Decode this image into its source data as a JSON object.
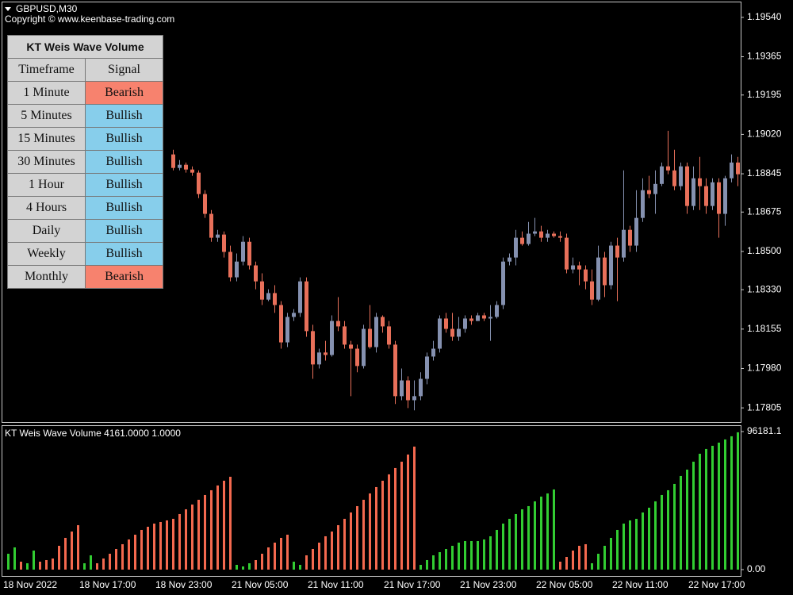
{
  "header": {
    "symbol": "GBPUSD,M30",
    "copyright": "Copyright © www.keenbase-trading.com"
  },
  "table": {
    "title": "KT Weis Wave Volume",
    "columns": [
      "Timeframe",
      "Signal"
    ],
    "rows": [
      [
        "1 Minute",
        "Bearish"
      ],
      [
        "5 Minutes",
        "Bullish"
      ],
      [
        "15 Minutes",
        "Bullish"
      ],
      [
        "30 Minutes",
        "Bullish"
      ],
      [
        "1 Hour",
        "Bullish"
      ],
      [
        "4 Hours",
        "Bullish"
      ],
      [
        "Daily",
        "Bullish"
      ],
      [
        "Weekly",
        "Bullish"
      ],
      [
        "Monthly",
        "Bearish"
      ]
    ],
    "signal_colors": {
      "Bearish": "#f7826e",
      "Bullish": "#87ceeb"
    }
  },
  "chart_data": [
    {
      "type": "candlestick",
      "up_color": "#8591b0",
      "down_color": "#e8705a",
      "categories": [
        "18 Nov 2022",
        null,
        null,
        null,
        null,
        null,
        null,
        null,
        null,
        null,
        null,
        null,
        "18 Nov 17:00",
        null,
        null,
        null,
        null,
        null,
        null,
        null,
        null,
        null,
        null,
        null,
        "18 Nov 23:00",
        null,
        null,
        null,
        null,
        null,
        null,
        null,
        null,
        null,
        null,
        null,
        "21 Nov 05:00",
        null,
        null,
        null,
        null,
        null,
        null,
        null,
        null,
        null,
        null,
        null,
        "21 Nov 11:00",
        null,
        null,
        null,
        null,
        null,
        null,
        null,
        null,
        null,
        null,
        null,
        "21 Nov 17:00",
        null,
        null,
        null,
        null,
        null,
        null,
        null,
        null,
        null,
        null,
        null,
        "21 Nov 23:00",
        null,
        null,
        null,
        null,
        null,
        null,
        null,
        null,
        null,
        null,
        null,
        "22 Nov 05:00",
        null,
        null,
        null,
        null,
        null,
        null,
        null,
        null,
        null,
        null,
        null,
        "22 Nov 11:00",
        null,
        null,
        null,
        null,
        null,
        null,
        null,
        null,
        null,
        null,
        null,
        "22 Nov 17:00",
        null,
        null,
        null,
        null,
        null,
        null,
        null
      ],
      "open": [
        null,
        null,
        null,
        null,
        null,
        null,
        null,
        null,
        null,
        null,
        null,
        null,
        null,
        null,
        null,
        null,
        null,
        null,
        null,
        null,
        null,
        null,
        null,
        null,
        null,
        null,
        1.18931,
        1.18871,
        1.18885,
        1.18864,
        1.1885,
        1.18755,
        1.18667,
        1.18561,
        1.18575,
        1.18498,
        1.18385,
        1.18455,
        1.18543,
        1.18438,
        1.18367,
        1.18286,
        1.18315,
        1.18262,
        1.18096,
        1.18209,
        1.18227,
        1.18367,
        1.18146,
        1.17998,
        1.18051,
        1.1804,
        1.18191,
        1.18167,
        1.18086,
        1.18068,
        1.17991,
        1.18156,
        1.18075,
        1.18209,
        1.18167,
        1.18086,
        1.17857,
        1.17927,
        1.17839,
        1.17857,
        1.17934,
        1.18033,
        1.18068,
        1.18202,
        1.18156,
        1.18121,
        1.18156,
        1.18202,
        1.18191,
        1.18216,
        1.18202,
        1.18209,
        1.18262,
        1.18455,
        1.18473,
        1.18561,
        1.18533,
        1.18579,
        1.18589,
        1.18561,
        1.18579,
        1.18568,
        1.18561,
        1.1842,
        1.18438,
        1.1842,
        1.18367,
        1.18286,
        1.18473,
        1.1835,
        1.18526,
        1.18473,
        1.18596,
        1.18526,
        1.18649,
        1.18772,
        1.18755,
        1.188,
        1.18878,
        1.1886,
        1.1879,
        1.18878,
        1.18702,
        1.18825,
        1.1879,
        1.18702,
        1.18807,
        1.18667,
        1.18825,
        1.18895
      ],
      "high": [
        null,
        null,
        null,
        null,
        null,
        null,
        null,
        null,
        null,
        null,
        null,
        null,
        null,
        null,
        null,
        null,
        null,
        null,
        null,
        null,
        null,
        null,
        null,
        null,
        null,
        null,
        1.18952,
        1.18906,
        1.18895,
        1.18878,
        1.1886,
        1.18772,
        1.18684,
        1.18596,
        1.18589,
        1.18526,
        1.18491,
        1.18568,
        1.18561,
        1.18455,
        1.18403,
        1.18332,
        1.1835,
        1.18279,
        1.18227,
        1.18244,
        1.18385,
        1.18385,
        1.18174,
        1.18068,
        1.18103,
        1.18216,
        1.18297,
        1.18191,
        1.18103,
        1.18086,
        1.18174,
        1.18262,
        1.18227,
        1.18216,
        1.18191,
        1.18103,
        1.1798,
        1.17945,
        1.17927,
        1.17963,
        1.18051,
        1.18103,
        1.18216,
        1.18227,
        1.18227,
        1.18209,
        1.18216,
        1.18216,
        1.18227,
        1.18227,
        1.18262,
        1.18279,
        1.18473,
        1.18491,
        1.18596,
        1.18589,
        1.18631,
        1.18649,
        1.18614,
        1.18596,
        1.18589,
        1.18589,
        1.18579,
        1.18473,
        1.18455,
        1.18438,
        1.1842,
        1.18526,
        1.18498,
        1.18543,
        1.18561,
        1.1886,
        1.18614,
        1.18772,
        1.18825,
        1.18836,
        1.1886,
        1.18895,
        1.19036,
        1.18952,
        1.18895,
        1.18895,
        1.18878,
        1.1892,
        1.18825,
        1.18825,
        1.18825,
        1.18836,
        1.18931,
        1.1892
      ],
      "low": [
        null,
        null,
        null,
        null,
        null,
        null,
        null,
        null,
        null,
        null,
        null,
        null,
        null,
        null,
        null,
        null,
        null,
        null,
        null,
        null,
        null,
        null,
        null,
        null,
        null,
        null,
        1.1886,
        1.1886,
        1.1885,
        1.18836,
        1.18737,
        1.18649,
        1.18543,
        1.18543,
        1.18473,
        1.18367,
        1.18367,
        1.18438,
        1.1842,
        1.18332,
        1.18262,
        1.18279,
        1.18227,
        1.18068,
        1.18075,
        1.18191,
        1.18209,
        1.18121,
        1.17934,
        1.1798,
        1.18015,
        1.18033,
        1.18146,
        1.18068,
        1.17857,
        1.17963,
        1.1798,
        1.18068,
        1.18051,
        1.18139,
        1.18068,
        1.17822,
        1.17839,
        1.17804,
        1.17794,
        1.17839,
        1.1791,
        1.18015,
        1.18051,
        1.18139,
        1.18103,
        1.18103,
        1.18139,
        1.18174,
        1.18191,
        1.18191,
        1.18103,
        1.18202,
        1.18244,
        1.18438,
        1.18438,
        1.18526,
        1.18526,
        1.18568,
        1.18543,
        1.18543,
        1.18561,
        1.18543,
        1.18403,
        1.18403,
        1.1835,
        1.18332,
        1.18262,
        1.18279,
        1.18297,
        1.18332,
        1.18279,
        1.18455,
        1.18498,
        1.18498,
        1.18631,
        1.18737,
        1.18667,
        1.1879,
        1.18843,
        1.18772,
        1.18772,
        1.18667,
        1.18684,
        1.18684,
        1.18667,
        1.18684,
        1.18561,
        1.18614,
        1.18807,
        1.1879
      ],
      "close": [
        null,
        null,
        null,
        null,
        null,
        null,
        null,
        null,
        null,
        null,
        null,
        null,
        null,
        null,
        null,
        null,
        null,
        null,
        null,
        null,
        null,
        null,
        null,
        null,
        null,
        null,
        1.18871,
        1.18885,
        1.18864,
        1.1885,
        1.18755,
        1.18667,
        1.18561,
        1.18575,
        1.18498,
        1.18385,
        1.18455,
        1.18543,
        1.18438,
        1.18367,
        1.18286,
        1.18315,
        1.18262,
        1.18096,
        1.18209,
        1.18227,
        1.18367,
        1.18146,
        1.17998,
        1.18051,
        1.1804,
        1.18191,
        1.18167,
        1.18086,
        1.18068,
        1.17991,
        1.18156,
        1.18075,
        1.18209,
        1.18167,
        1.18086,
        1.17857,
        1.17927,
        1.17839,
        1.17857,
        1.17934,
        1.18033,
        1.18068,
        1.18202,
        1.18156,
        1.18121,
        1.18156,
        1.18202,
        1.18191,
        1.18216,
        1.18202,
        1.18209,
        1.18262,
        1.18455,
        1.18473,
        1.18561,
        1.18533,
        1.18579,
        1.18589,
        1.18561,
        1.18579,
        1.18568,
        1.18561,
        1.1842,
        1.18438,
        1.1842,
        1.18367,
        1.18286,
        1.18473,
        1.1835,
        1.18526,
        1.18473,
        1.18596,
        1.18526,
        1.18649,
        1.18772,
        1.18755,
        1.188,
        1.18878,
        1.1886,
        1.1879,
        1.18878,
        1.18702,
        1.18825,
        1.1879,
        1.18702,
        1.18807,
        1.18667,
        1.18825,
        1.18895,
        1.18843
      ],
      "ylim": [
        1.17742,
        1.19603
      ],
      "yticks": [
        {
          "value": 1.1954,
          "label": "1.19540"
        },
        1.19365,
        1.19195,
        {
          "value": 1.1902,
          "label": "1.19020"
        },
        1.18845,
        1.18675,
        {
          "value": 1.185,
          "label": "1.18500"
        },
        {
          "value": 1.1833,
          "label": "1.18330"
        },
        1.18155,
        {
          "value": 1.1798,
          "label": "1.17980"
        },
        1.17805
      ],
      "grid": false
    },
    {
      "type": "bar",
      "title": "KT Weis Wave Volume 4161.0000 1.0000",
      "values": [
        11060,
        15484,
        5530,
        4424,
        13272,
        5530,
        6636,
        7742,
        16590,
        22120,
        26544,
        30968,
        4424,
        9954,
        4424,
        7742,
        11060,
        14378,
        17696,
        21014,
        24332,
        27650,
        29862,
        32074,
        33180,
        34286,
        35392,
        38710,
        42028,
        45346,
        48664,
        51982,
        55300,
        58618,
        61936,
        64701,
        3318,
        2212,
        4424,
        6636,
        11060,
        15484,
        18802,
        22120,
        24332,
        5530,
        3318,
        9954,
        14378,
        18802,
        23226,
        26544,
        30968,
        35392,
        39816,
        44240,
        48664,
        53088,
        57512,
        61936,
        66360,
        70784,
        75208,
        80185,
        85715,
        3318,
        6636,
        9954,
        12166,
        14378,
        16590,
        18802,
        19908,
        19908,
        19908,
        21014,
        23226,
        27650,
        32074,
        35392,
        38710,
        42028,
        44240,
        47558,
        50876,
        53088,
        55853,
        5530,
        8848,
        13272,
        16590,
        17696,
        4424,
        11060,
        16590,
        22120,
        27650,
        32074,
        34286,
        35392,
        39816,
        43134,
        47558,
        51982,
        55300,
        59724,
        65254,
        69678,
        75208,
        80738,
        84056,
        86268,
        88480,
        90692,
        92904,
        95669
      ],
      "colors": [
        "#32cd32",
        "#32cd32",
        "#f4694f",
        "#32cd32",
        "#32cd32",
        "#f4694f",
        "#f4694f",
        "#f4694f",
        "#f4694f",
        "#f4694f",
        "#f4694f",
        "#f4694f",
        "#32cd32",
        "#32cd32",
        "#f4694f",
        "#f4694f",
        "#f4694f",
        "#f4694f",
        "#f4694f",
        "#f4694f",
        "#f4694f",
        "#f4694f",
        "#f4694f",
        "#f4694f",
        "#f4694f",
        "#f4694f",
        "#f4694f",
        "#f4694f",
        "#f4694f",
        "#f4694f",
        "#f4694f",
        "#f4694f",
        "#f4694f",
        "#f4694f",
        "#f4694f",
        "#f4694f",
        "#32cd32",
        "#32cd32",
        "#32cd32",
        "#f4694f",
        "#f4694f",
        "#f4694f",
        "#f4694f",
        "#f4694f",
        "#f4694f",
        "#32cd32",
        "#32cd32",
        "#f4694f",
        "#f4694f",
        "#f4694f",
        "#f4694f",
        "#f4694f",
        "#f4694f",
        "#f4694f",
        "#f4694f",
        "#f4694f",
        "#f4694f",
        "#f4694f",
        "#f4694f",
        "#f4694f",
        "#f4694f",
        "#f4694f",
        "#f4694f",
        "#f4694f",
        "#f4694f",
        "#32cd32",
        "#32cd32",
        "#32cd32",
        "#32cd32",
        "#32cd32",
        "#32cd32",
        "#32cd32",
        "#32cd32",
        "#32cd32",
        "#32cd32",
        "#32cd32",
        "#32cd32",
        "#32cd32",
        "#32cd32",
        "#32cd32",
        "#32cd32",
        "#32cd32",
        "#32cd32",
        "#32cd32",
        "#32cd32",
        "#32cd32",
        "#32cd32",
        "#f4694f",
        "#f4694f",
        "#f4694f",
        "#f4694f",
        "#f4694f",
        "#32cd32",
        "#32cd32",
        "#32cd32",
        "#32cd32",
        "#32cd32",
        "#32cd32",
        "#32cd32",
        "#32cd32",
        "#32cd32",
        "#32cd32",
        "#32cd32",
        "#32cd32",
        "#32cd32",
        "#32cd32",
        "#32cd32",
        "#32cd32",
        "#32cd32",
        "#32cd32",
        "#32cd32",
        "#32cd32",
        "#32cd32",
        "#32cd32",
        "#32cd32",
        "#32cd32"
      ],
      "ylim": [
        0,
        96181.1
      ],
      "yticks": [
        {
          "value": 0,
          "label": "0.00"
        },
        96181.1
      ]
    }
  ]
}
